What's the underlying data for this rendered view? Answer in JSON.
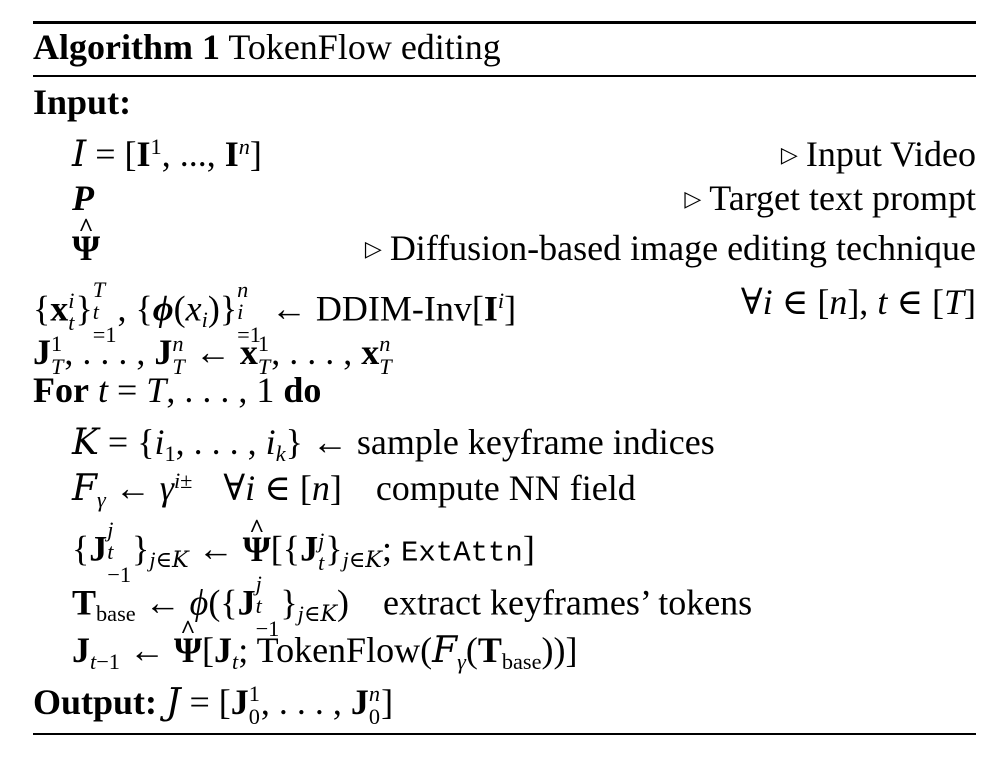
{
  "title": {
    "label": "Algorithm 1",
    "text": "TokenFlow editing"
  },
  "input_label": "Input:",
  "for_kw": "For",
  "do_kw": "do",
  "output_label": "Output:",
  "comments": {
    "video": "Input Video",
    "prompt": "Target text prompt",
    "editing": "Diffusion-based image editing technique"
  },
  "text": {
    "ddim": "DDIM-Inv",
    "sample": "sample keyframe indices",
    "nn": "compute NN field",
    "extattn": "ExtAttn",
    "extract": "extract keyframes’ tokens",
    "tokenflow": "TokenFlow",
    "base": "base"
  }
}
